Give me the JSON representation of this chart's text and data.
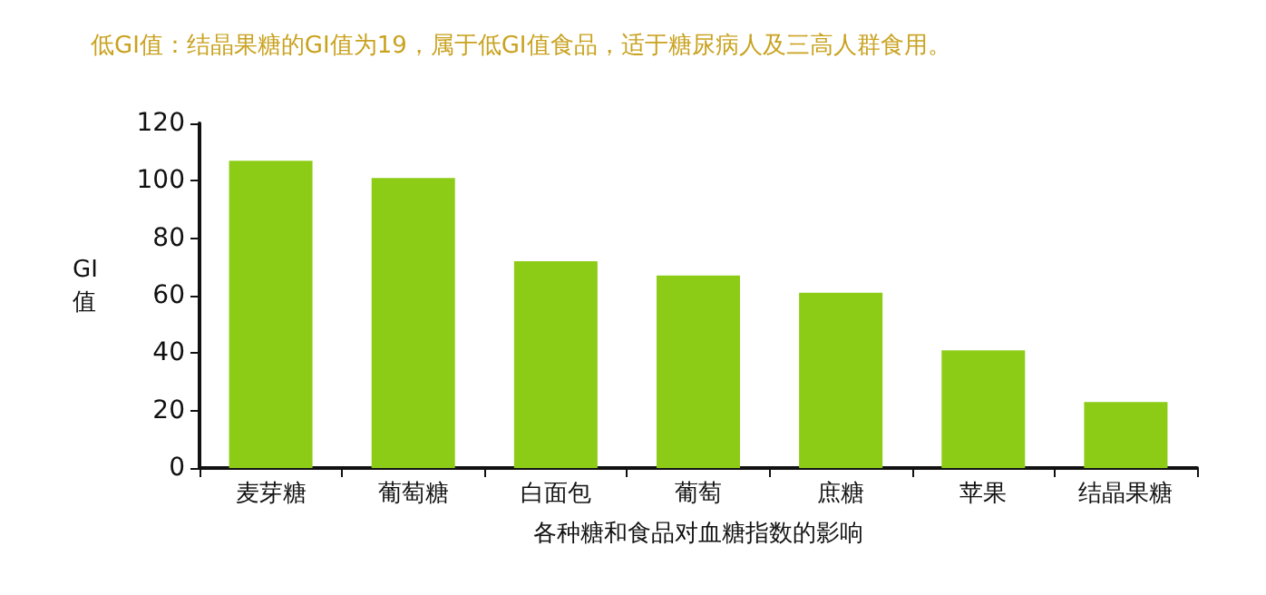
{
  "chart_data": {
    "type": "bar",
    "title": "低GI值：结晶果糖的GI值为19，属于低GI值食品，适于糖尿病人及三高人群食用。",
    "xlabel": "各种糖和食品对血糖指数的影响",
    "ylabel": "GI值",
    "categories": [
      "麦芽糖",
      "葡萄糖",
      "白面包",
      "葡萄",
      "庶糖",
      "苹果",
      "结晶果糖"
    ],
    "values": [
      107,
      101,
      72,
      67,
      61,
      41,
      23
    ],
    "color": "#8dcc16",
    "ylim": [
      0,
      120
    ],
    "yticks": [
      0,
      20,
      40,
      60,
      80,
      100,
      120
    ],
    "grid": false
  }
}
